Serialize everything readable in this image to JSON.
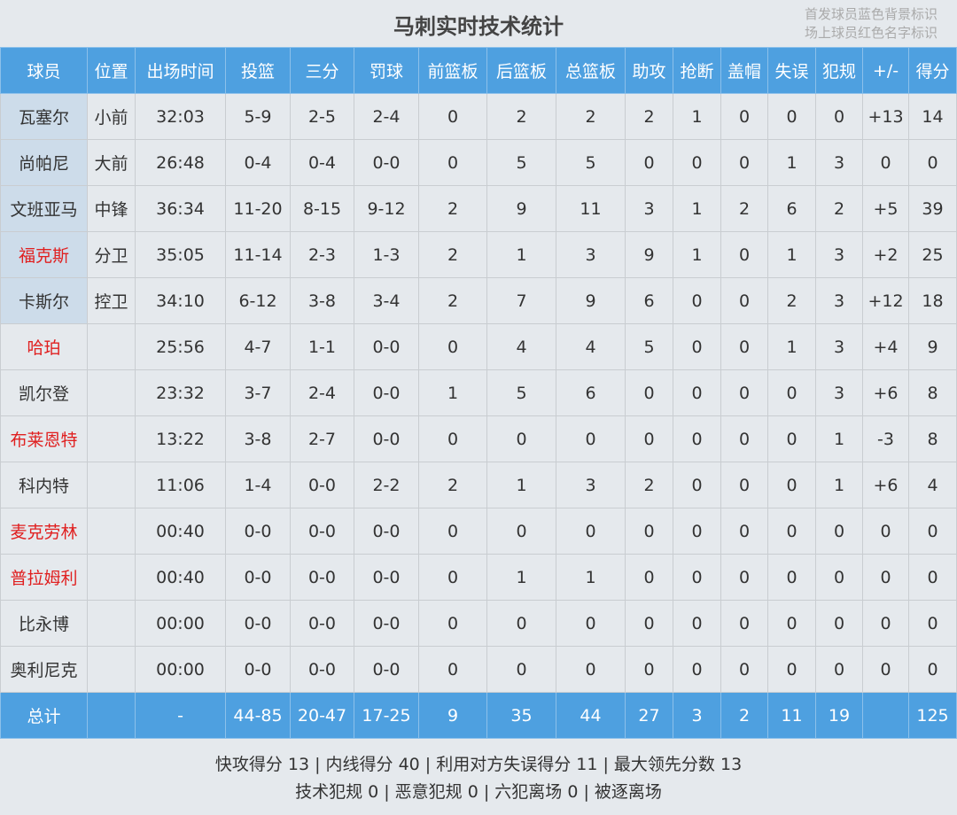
{
  "title": "马刺实时技术统计",
  "legend_notes": [
    "首发球员蓝色背景标识",
    "场上球员红色名字标识"
  ],
  "columns": [
    "球员",
    "位置",
    "出场时间",
    "投篮",
    "三分",
    "罚球",
    "前篮板",
    "后篮板",
    "总篮板",
    "助攻",
    "抢断",
    "盖帽",
    "失误",
    "犯规",
    "+/-",
    "得分"
  ],
  "players": [
    {
      "starter": true,
      "on_court": false,
      "cells": [
        "瓦塞尔",
        "小前",
        "32:03",
        "5-9",
        "2-5",
        "2-4",
        "0",
        "2",
        "2",
        "2",
        "1",
        "0",
        "0",
        "0",
        "+13",
        "14"
      ]
    },
    {
      "starter": true,
      "on_court": false,
      "cells": [
        "尚帕尼",
        "大前",
        "26:48",
        "0-4",
        "0-4",
        "0-0",
        "0",
        "5",
        "5",
        "0",
        "0",
        "0",
        "1",
        "3",
        "0",
        "0"
      ]
    },
    {
      "starter": true,
      "on_court": false,
      "cells": [
        "文班亚马",
        "中锋",
        "36:34",
        "11-20",
        "8-15",
        "9-12",
        "2",
        "9",
        "11",
        "3",
        "1",
        "2",
        "6",
        "2",
        "+5",
        "39"
      ]
    },
    {
      "starter": true,
      "on_court": true,
      "cells": [
        "福克斯",
        "分卫",
        "35:05",
        "11-14",
        "2-3",
        "1-3",
        "2",
        "1",
        "3",
        "9",
        "1",
        "0",
        "1",
        "3",
        "+2",
        "25"
      ]
    },
    {
      "starter": true,
      "on_court": false,
      "cells": [
        "卡斯尔",
        "控卫",
        "34:10",
        "6-12",
        "3-8",
        "3-4",
        "2",
        "7",
        "9",
        "6",
        "0",
        "0",
        "2",
        "3",
        "+12",
        "18"
      ]
    },
    {
      "starter": false,
      "on_court": true,
      "cells": [
        "哈珀",
        "",
        "25:56",
        "4-7",
        "1-1",
        "0-0",
        "0",
        "4",
        "4",
        "5",
        "0",
        "0",
        "1",
        "3",
        "+4",
        "9"
      ]
    },
    {
      "starter": false,
      "on_court": false,
      "cells": [
        "凯尔登",
        "",
        "23:32",
        "3-7",
        "2-4",
        "0-0",
        "1",
        "5",
        "6",
        "0",
        "0",
        "0",
        "0",
        "3",
        "+6",
        "8"
      ]
    },
    {
      "starter": false,
      "on_court": true,
      "cells": [
        "布莱恩特",
        "",
        "13:22",
        "3-8",
        "2-7",
        "0-0",
        "0",
        "0",
        "0",
        "0",
        "0",
        "0",
        "0",
        "1",
        "-3",
        "8"
      ]
    },
    {
      "starter": false,
      "on_court": false,
      "cells": [
        "科内特",
        "",
        "11:06",
        "1-4",
        "0-0",
        "2-2",
        "2",
        "1",
        "3",
        "2",
        "0",
        "0",
        "0",
        "1",
        "+6",
        "4"
      ]
    },
    {
      "starter": false,
      "on_court": true,
      "cells": [
        "麦克劳林",
        "",
        "00:40",
        "0-0",
        "0-0",
        "0-0",
        "0",
        "0",
        "0",
        "0",
        "0",
        "0",
        "0",
        "0",
        "0",
        "0"
      ]
    },
    {
      "starter": false,
      "on_court": true,
      "cells": [
        "普拉姆利",
        "",
        "00:40",
        "0-0",
        "0-0",
        "0-0",
        "0",
        "1",
        "1",
        "0",
        "0",
        "0",
        "0",
        "0",
        "0",
        "0"
      ]
    },
    {
      "starter": false,
      "on_court": false,
      "cells": [
        "比永博",
        "",
        "00:00",
        "0-0",
        "0-0",
        "0-0",
        "0",
        "0",
        "0",
        "0",
        "0",
        "0",
        "0",
        "0",
        "0",
        "0"
      ]
    },
    {
      "starter": false,
      "on_court": false,
      "cells": [
        "奥利尼克",
        "",
        "00:00",
        "0-0",
        "0-0",
        "0-0",
        "0",
        "0",
        "0",
        "0",
        "0",
        "0",
        "0",
        "0",
        "0",
        "0"
      ]
    }
  ],
  "totals": [
    "总计",
    "",
    "-",
    "44-85",
    "20-47",
    "17-25",
    "9",
    "35",
    "44",
    "27",
    "3",
    "2",
    "11",
    "19",
    "",
    "125"
  ],
  "footer": [
    "快攻得分 13 | 内线得分 40 | 利用对方失误得分 11 | 最大领先分数 13",
    "技术犯规 0 | 恶意犯规 0 | 六犯离场 0 | 被逐离场"
  ]
}
